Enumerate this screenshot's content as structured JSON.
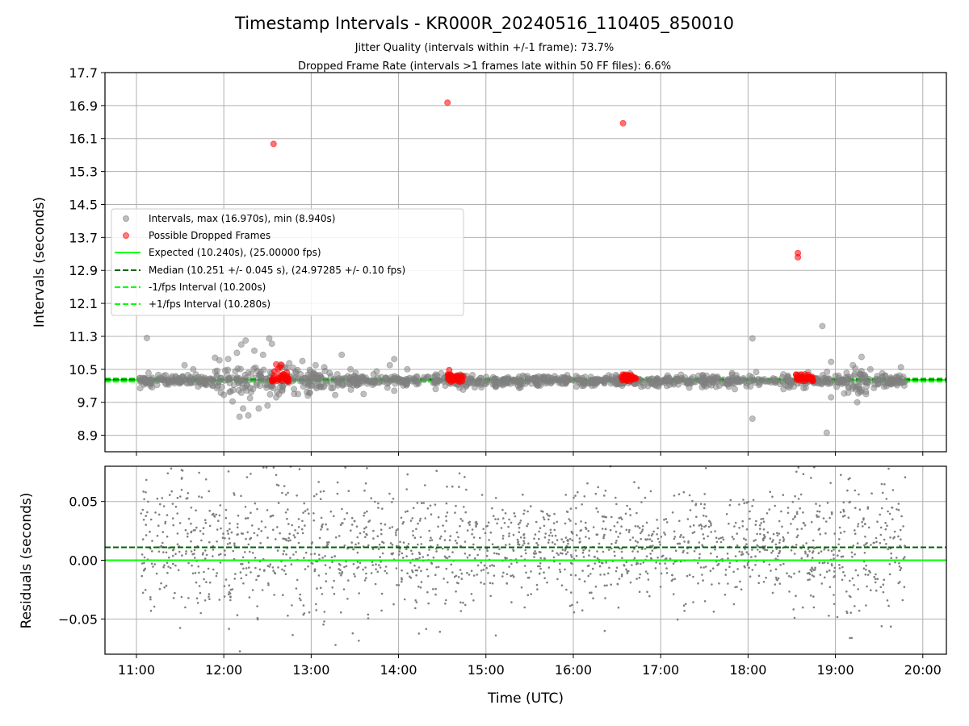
{
  "chart_data": [
    {
      "type": "scatter",
      "title": "Timestamp Intervals - KR000R_20240516_110405_850010",
      "subtitle_lines": [
        "Jitter Quality (intervals within +/-1 frame): 73.7%",
        "Dropped Frame Rate (intervals >1 frames late within 50 FF files): 6.6%"
      ],
      "ylabel": "Intervals (seconds)",
      "xlim_hours": [
        10.64,
        20.27
      ],
      "ylim": [
        8.5,
        17.7
      ],
      "yticks": [
        8.9,
        9.7,
        10.5,
        11.3,
        12.1,
        12.9,
        13.7,
        14.5,
        15.3,
        16.1,
        16.9,
        17.7
      ],
      "ytick_labels": [
        "8.9",
        "9.7",
        "10.5",
        "11.3",
        "12.1",
        "12.9",
        "13.7",
        "14.5",
        "15.3",
        "16.1",
        "16.9",
        "17.7"
      ],
      "grid": true,
      "legend_position": "center-left",
      "legend": [
        {
          "label": "Intervals, max (16.970s), min (8.940s)",
          "marker": "circle",
          "color": "#808080"
        },
        {
          "label": "Possible Dropped Frames",
          "marker": "circle",
          "color": "#ff0000"
        },
        {
          "label": "Expected (10.240s), (25.00000 fps)",
          "marker": "solid-line",
          "color": "#00ff00"
        },
        {
          "label": "Median (10.251 +/- 0.045 s), (24.97285 +/- 0.10 fps)",
          "marker": "dashed-line",
          "color": "#006400"
        },
        {
          "label": "-1/fps Interval (10.200s)",
          "marker": "dashed-line",
          "color": "#00ff00"
        },
        {
          "label": "+1/fps Interval (10.280s)",
          "marker": "dashed-line",
          "color": "#00ff00"
        }
      ],
      "reference_lines": {
        "expected": 10.24,
        "median": 10.251,
        "minus_one_frame": 10.2,
        "plus_one_frame": 10.28
      },
      "interval_band": {
        "x_range": [
          11.03,
          19.8
        ],
        "center": 10.22,
        "spread": 0.07,
        "count": 1200
      },
      "interval_outliers": [
        {
          "x": 11.12,
          "y": 11.26
        },
        {
          "x": 11.55,
          "y": 10.6
        },
        {
          "x": 11.65,
          "y": 10.5
        },
        {
          "x": 11.9,
          "y": 10.78
        },
        {
          "x": 11.95,
          "y": 10.72
        },
        {
          "x": 12.0,
          "y": 9.88
        },
        {
          "x": 12.05,
          "y": 10.75
        },
        {
          "x": 12.1,
          "y": 9.72
        },
        {
          "x": 12.15,
          "y": 10.9
        },
        {
          "x": 12.18,
          "y": 9.35
        },
        {
          "x": 12.2,
          "y": 11.1
        },
        {
          "x": 12.22,
          "y": 9.55
        },
        {
          "x": 12.25,
          "y": 11.2
        },
        {
          "x": 12.28,
          "y": 9.38
        },
        {
          "x": 12.3,
          "y": 9.8
        },
        {
          "x": 12.35,
          "y": 10.95
        },
        {
          "x": 12.4,
          "y": 9.55
        },
        {
          "x": 12.45,
          "y": 10.85
        },
        {
          "x": 12.5,
          "y": 9.62
        },
        {
          "x": 12.52,
          "y": 11.25
        },
        {
          "x": 12.55,
          "y": 11.12
        },
        {
          "x": 12.6,
          "y": 9.82
        },
        {
          "x": 12.65,
          "y": 10.62
        },
        {
          "x": 12.7,
          "y": 10.55
        },
        {
          "x": 12.75,
          "y": 10.65
        },
        {
          "x": 12.85,
          "y": 9.9
        },
        {
          "x": 12.9,
          "y": 10.7
        },
        {
          "x": 12.95,
          "y": 9.95
        },
        {
          "x": 13.05,
          "y": 10.6
        },
        {
          "x": 13.15,
          "y": 10.55
        },
        {
          "x": 13.35,
          "y": 10.85
        },
        {
          "x": 13.45,
          "y": 10.5
        },
        {
          "x": 13.6,
          "y": 9.9
        },
        {
          "x": 13.75,
          "y": 10.45
        },
        {
          "x": 13.9,
          "y": 10.6
        },
        {
          "x": 13.95,
          "y": 9.98
        },
        {
          "x": 13.95,
          "y": 10.75
        },
        {
          "x": 14.1,
          "y": 10.5
        },
        {
          "x": 14.55,
          "y": 10.35
        },
        {
          "x": 16.65,
          "y": 10.4
        },
        {
          "x": 18.05,
          "y": 11.25
        },
        {
          "x": 18.05,
          "y": 9.3
        },
        {
          "x": 18.85,
          "y": 11.55
        },
        {
          "x": 18.9,
          "y": 8.96
        },
        {
          "x": 18.95,
          "y": 10.68
        },
        {
          "x": 18.95,
          "y": 9.82
        },
        {
          "x": 19.2,
          "y": 10.6
        },
        {
          "x": 19.25,
          "y": 9.7
        },
        {
          "x": 19.3,
          "y": 10.8
        },
        {
          "x": 19.35,
          "y": 9.9
        },
        {
          "x": 19.4,
          "y": 10.5
        },
        {
          "x": 19.75,
          "y": 10.55
        }
      ],
      "dropped_frames": [
        {
          "x": 12.57,
          "y": 15.97
        },
        {
          "x": 12.58,
          "y": 10.45
        },
        {
          "x": 12.6,
          "y": 10.62
        },
        {
          "x": 12.62,
          "y": 10.5
        },
        {
          "x": 12.64,
          "y": 10.55
        },
        {
          "x": 12.66,
          "y": 10.6
        },
        {
          "x": 12.68,
          "y": 10.38
        },
        {
          "x": 12.7,
          "y": 10.32
        },
        {
          "x": 12.72,
          "y": 10.42
        },
        {
          "x": 14.56,
          "y": 16.97
        },
        {
          "x": 14.58,
          "y": 10.48
        },
        {
          "x": 14.6,
          "y": 10.35
        },
        {
          "x": 14.64,
          "y": 10.3
        },
        {
          "x": 14.68,
          "y": 10.28
        },
        {
          "x": 14.72,
          "y": 10.32
        },
        {
          "x": 16.57,
          "y": 16.47
        },
        {
          "x": 16.58,
          "y": 10.3
        },
        {
          "x": 16.62,
          "y": 10.28
        },
        {
          "x": 16.66,
          "y": 10.3
        },
        {
          "x": 16.7,
          "y": 10.28
        },
        {
          "x": 18.57,
          "y": 13.32
        },
        {
          "x": 18.57,
          "y": 13.22
        },
        {
          "x": 18.58,
          "y": 10.28
        },
        {
          "x": 18.62,
          "y": 10.3
        },
        {
          "x": 18.67,
          "y": 10.27
        },
        {
          "x": 18.72,
          "y": 10.28
        }
      ],
      "dropped_clusters": [
        [
          12.55,
          12.75
        ],
        [
          14.55,
          14.75
        ],
        [
          16.55,
          16.72
        ],
        [
          18.55,
          18.75
        ]
      ]
    },
    {
      "type": "scatter",
      "ylabel": "Residuals (seconds)",
      "xlabel": "Time (UTC)",
      "xlim_hours": [
        10.64,
        20.27
      ],
      "ylim": [
        -0.08,
        0.08
      ],
      "yticks": [
        -0.05,
        0.0,
        0.05
      ],
      "ytick_labels": [
        "−0.05",
        "0.00",
        "0.05"
      ],
      "xticks_hours": [
        11,
        12,
        13,
        14,
        15,
        16,
        17,
        18,
        19,
        20
      ],
      "xtick_labels": [
        "11:00",
        "12:00",
        "13:00",
        "14:00",
        "15:00",
        "16:00",
        "17:00",
        "18:00",
        "19:00",
        "20:00"
      ],
      "grid": true,
      "reference_lines": {
        "zero": 0.0,
        "median": 0.011
      },
      "residual_points": {
        "x_range": [
          11.05,
          19.8
        ],
        "count": 1800,
        "center": 0.011,
        "spread": 0.03
      },
      "colors": {
        "points": "#7f7f7f",
        "zero_line": "#00ff00",
        "median_line": "#006400"
      }
    }
  ]
}
